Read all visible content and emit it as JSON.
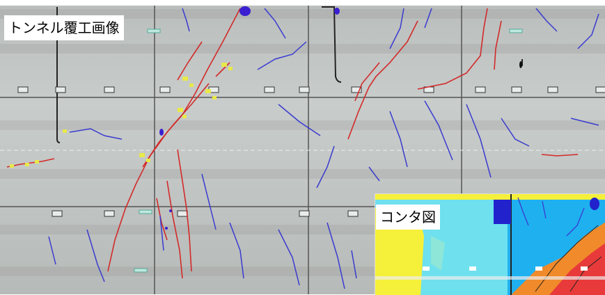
{
  "labels": {
    "main": "トンネル覆工画像",
    "contour": "コンタ図"
  },
  "colors": {
    "crack_red": "#d22a2a",
    "crack_blue": "#3a3ad0",
    "annotation_yellow": "#e8e84a",
    "lining_gray": "#c4c8c6",
    "contour_blue": "#1fb0f0",
    "contour_cyan": "#6ee0ee",
    "contour_yellow": "#f5f03a",
    "contour_orange": "#f08a2a",
    "contour_red": "#e83a3a"
  },
  "icons": {
    "lamp": "lamp-fixture-icon",
    "marker": "green-marker-icon"
  }
}
